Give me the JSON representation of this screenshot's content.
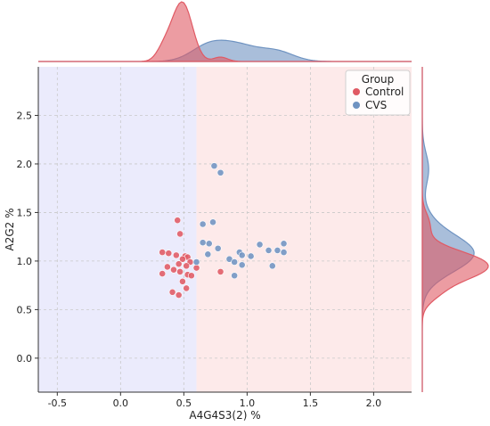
{
  "chart_data": {
    "type": "scatter",
    "title": "",
    "xlabel": "A4G4S3(2) %",
    "ylabel": "A2G2 %",
    "xlim": [
      -0.65,
      2.3
    ],
    "ylim": [
      -0.35,
      3.0
    ],
    "x_ticks": [
      "-0.5",
      "0.0",
      "0.5",
      "1.0",
      "1.5",
      "2.0"
    ],
    "x_tick_values": [
      -0.5,
      0.0,
      0.5,
      1.0,
      1.5,
      2.0
    ],
    "y_ticks": [
      "0.0",
      "0.5",
      "1.0",
      "1.5",
      "2.0",
      "2.5"
    ],
    "y_tick_values": [
      0.0,
      0.5,
      1.0,
      1.5,
      2.0,
      2.5
    ],
    "grid": true,
    "background_regions": [
      {
        "x_from": -0.65,
        "x_to": 0.6,
        "color": "#ebebfc"
      },
      {
        "x_from": 0.6,
        "x_to": 2.3,
        "color": "#fdeaea"
      }
    ],
    "legend": {
      "title": "Group",
      "placement": "top-right",
      "entries": [
        "Control",
        "CVS"
      ]
    },
    "marginal_plots": "kde",
    "series": [
      {
        "name": "Control",
        "color": "#e05a64",
        "points": [
          {
            "x": 0.45,
            "y": 1.42
          },
          {
            "x": 0.47,
            "y": 1.28
          },
          {
            "x": 0.33,
            "y": 1.09
          },
          {
            "x": 0.38,
            "y": 1.08
          },
          {
            "x": 0.44,
            "y": 1.06
          },
          {
            "x": 0.51,
            "y": 1.05
          },
          {
            "x": 0.53,
            "y": 1.04
          },
          {
            "x": 0.49,
            "y": 1.02
          },
          {
            "x": 0.55,
            "y": 0.99
          },
          {
            "x": 0.46,
            "y": 0.97
          },
          {
            "x": 0.52,
            "y": 0.95
          },
          {
            "x": 0.37,
            "y": 0.94
          },
          {
            "x": 0.42,
            "y": 0.91
          },
          {
            "x": 0.47,
            "y": 0.89
          },
          {
            "x": 0.33,
            "y": 0.87
          },
          {
            "x": 0.53,
            "y": 0.86
          },
          {
            "x": 0.56,
            "y": 0.85
          },
          {
            "x": 0.49,
            "y": 0.79
          },
          {
            "x": 0.52,
            "y": 0.72
          },
          {
            "x": 0.41,
            "y": 0.68
          },
          {
            "x": 0.46,
            "y": 0.65
          },
          {
            "x": 0.79,
            "y": 0.89
          },
          {
            "x": 0.6,
            "y": 0.93
          }
        ]
      },
      {
        "name": "CVS",
        "color": "#6f93c1",
        "points": [
          {
            "x": 0.74,
            "y": 1.98
          },
          {
            "x": 0.79,
            "y": 1.91
          },
          {
            "x": 0.73,
            "y": 1.4
          },
          {
            "x": 0.65,
            "y": 1.38
          },
          {
            "x": 0.65,
            "y": 1.19
          },
          {
            "x": 0.7,
            "y": 1.18
          },
          {
            "x": 0.77,
            "y": 1.13
          },
          {
            "x": 0.69,
            "y": 1.07
          },
          {
            "x": 0.94,
            "y": 1.09
          },
          {
            "x": 0.96,
            "y": 1.06
          },
          {
            "x": 1.03,
            "y": 1.05
          },
          {
            "x": 1.1,
            "y": 1.17
          },
          {
            "x": 1.17,
            "y": 1.11
          },
          {
            "x": 1.24,
            "y": 1.11
          },
          {
            "x": 1.29,
            "y": 1.18
          },
          {
            "x": 1.29,
            "y": 1.09
          },
          {
            "x": 0.86,
            "y": 1.02
          },
          {
            "x": 0.9,
            "y": 0.99
          },
          {
            "x": 0.96,
            "y": 0.96
          },
          {
            "x": 1.2,
            "y": 0.95
          },
          {
            "x": 0.9,
            "y": 0.85
          },
          {
            "x": 0.6,
            "y": 0.99
          }
        ]
      }
    ]
  }
}
